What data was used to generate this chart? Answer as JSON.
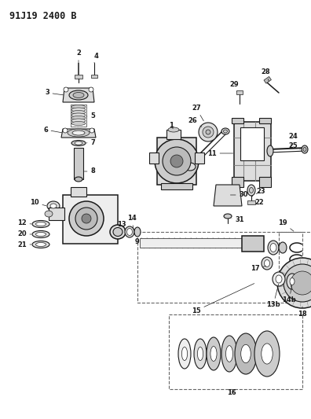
{
  "title": "91J19 2400 B",
  "bg_color": "#ffffff",
  "fig_width": 3.96,
  "fig_height": 5.33,
  "dpi": 100,
  "line_color": "#1a1a1a",
  "dark_color": "#333333",
  "gray1": "#bbbbbb",
  "gray2": "#cccccc",
  "gray3": "#dddddd",
  "gray4": "#eeeeee",
  "gray5": "#888888",
  "dashed_color": "#666666",
  "label_fs": 6.0,
  "title_fs": 8.5
}
